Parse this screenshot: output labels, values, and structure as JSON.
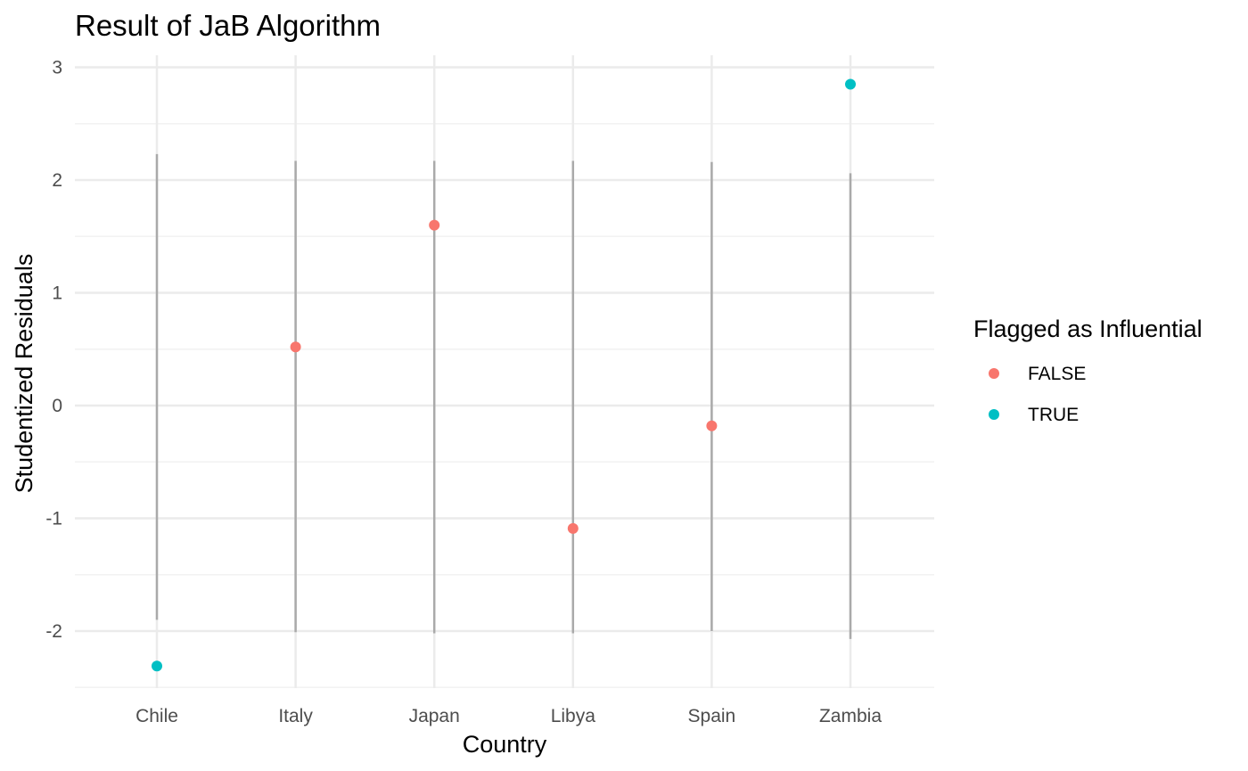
{
  "chart_data": {
    "type": "scatter",
    "title": "Result of JaB Algorithm",
    "xlabel": "Country",
    "ylabel": "Studentized Residuals",
    "categories": [
      "Chile",
      "Italy",
      "Japan",
      "Libya",
      "Spain",
      "Zambia"
    ],
    "ylim": [
      -2.5,
      3.1
    ],
    "yticks": [
      -2,
      -1,
      0,
      1,
      2,
      3
    ],
    "ytick_labels": [
      "-2",
      "-1",
      "0",
      "1",
      "2",
      "3"
    ],
    "grid": true,
    "points": [
      {
        "x": "Chile",
        "y": -2.31,
        "flag": "TRUE"
      },
      {
        "x": "Italy",
        "y": 0.52,
        "flag": "FALSE"
      },
      {
        "x": "Japan",
        "y": 1.6,
        "flag": "FALSE"
      },
      {
        "x": "Libya",
        "y": -1.09,
        "flag": "FALSE"
      },
      {
        "x": "Spain",
        "y": -0.18,
        "flag": "FALSE"
      },
      {
        "x": "Zambia",
        "y": 2.85,
        "flag": "TRUE"
      }
    ],
    "intervals": [
      {
        "x": "Chile",
        "low": -1.9,
        "high": 2.23
      },
      {
        "x": "Italy",
        "low": -2.01,
        "high": 2.17
      },
      {
        "x": "Japan",
        "low": -2.02,
        "high": 2.17
      },
      {
        "x": "Libya",
        "low": -2.02,
        "high": 2.17
      },
      {
        "x": "Spain",
        "low": -2.0,
        "high": 2.16
      },
      {
        "x": "Zambia",
        "low": -2.07,
        "high": 2.06
      }
    ],
    "legend": {
      "title": "Flagged as Influential",
      "position": "right",
      "entries": [
        {
          "label": "FALSE",
          "color": "#F8766D"
        },
        {
          "label": "TRUE",
          "color": "#00BFC4"
        }
      ]
    },
    "colors": {
      "FALSE": "#F8766D",
      "TRUE": "#00BFC4",
      "interval": "#aaaaaa",
      "grid_major": "#ebebeb",
      "grid_minor": "#f2f2f2"
    }
  }
}
